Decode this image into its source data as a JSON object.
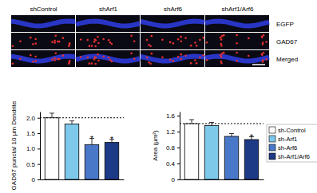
{
  "image_panel": {
    "columns": [
      "shControl",
      "shArf1",
      "shArf6",
      "shArf1/Arf6"
    ],
    "rows": [
      "EGFP",
      "GAD67",
      "Merged"
    ]
  },
  "chart_data": [
    {
      "type": "bar",
      "y_label": "GAD67 puncta/ 10 µm Dendrite",
      "categories": [
        null,
        null,
        null,
        null
      ],
      "values": [
        2.0,
        1.8,
        1.13,
        1.2
      ],
      "errors": [
        0.15,
        0.1,
        0.2,
        0.1
      ],
      "colors": [
        "#ffffff",
        "#7ec8ea",
        "#4a78c8",
        "#1c3a86"
      ],
      "reference": 2.0,
      "annotations": [
        {
          "text": "*",
          "category": 2
        },
        {
          "text": "*",
          "category": 3
        }
      ],
      "ylim": [
        0,
        2.2
      ],
      "yticks": [
        0,
        0.5,
        {
          "value": 1,
          "label": "1.0"
        },
        1.5,
        {
          "value": 2,
          "label": "2.0"
        }
      ],
      "tick_labels": "y"
    },
    {
      "type": "bar",
      "y_label": "Area (µm²)",
      "categories": [
        "sh-Control",
        "sh-Arf1",
        "sh-Arf6",
        "sh-Arf1/Arf6"
      ],
      "values": [
        1.4,
        1.35,
        1.08,
        1.0
      ],
      "errors": [
        0.1,
        0.08,
        0.07,
        0.07
      ],
      "colors": [
        "#ffffff",
        "#7ec8ea",
        "#4a78c8",
        "#1c3a86"
      ],
      "reference": 1.4,
      "annotations": [
        {
          "text": "*",
          "category": 3
        }
      ],
      "ylim": [
        0,
        1.7
      ],
      "yticks": [
        0,
        0.4,
        0.8,
        1.2,
        1.6
      ],
      "tick_labels": "y",
      "legend": "right"
    }
  ]
}
